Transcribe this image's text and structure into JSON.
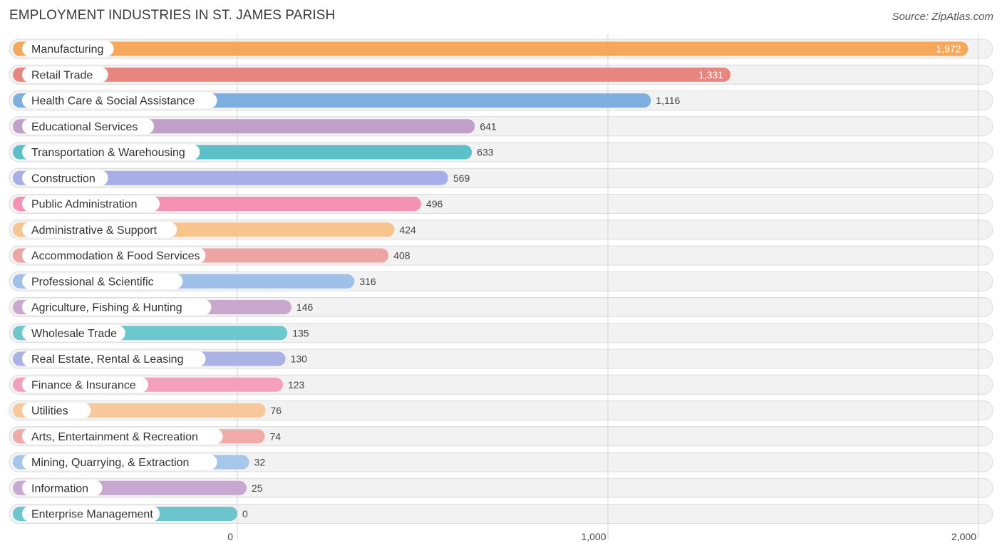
{
  "header": {
    "title": "EMPLOYMENT INDUSTRIES IN ST. JAMES PARISH",
    "source": "Source: ZipAtlas.com"
  },
  "chart_data": {
    "type": "bar",
    "orientation": "horizontal",
    "title": "EMPLOYMENT INDUSTRIES IN ST. JAMES PARISH",
    "xlabel": "",
    "ylabel": "",
    "xlim": [
      0,
      2000
    ],
    "ticks": [
      0,
      1000,
      2000
    ],
    "tick_labels": [
      "0",
      "1,000",
      "2,000"
    ],
    "grid": true,
    "categories": [
      "Manufacturing",
      "Retail Trade",
      "Health Care & Social Assistance",
      "Educational Services",
      "Transportation & Warehousing",
      "Construction",
      "Public Administration",
      "Administrative & Support",
      "Accommodation & Food Services",
      "Professional & Scientific",
      "Agriculture, Fishing & Hunting",
      "Wholesale Trade",
      "Real Estate, Rental & Leasing",
      "Finance & Insurance",
      "Utilities",
      "Arts, Entertainment & Recreation",
      "Mining, Quarrying, & Extraction",
      "Information",
      "Enterprise Management"
    ],
    "values": [
      1972,
      1331,
      1116,
      641,
      633,
      569,
      496,
      424,
      408,
      316,
      146,
      135,
      130,
      123,
      76,
      74,
      32,
      25,
      0
    ],
    "value_labels": [
      "1,972",
      "1,331",
      "1,116",
      "641",
      "633",
      "569",
      "496",
      "424",
      "408",
      "316",
      "146",
      "135",
      "130",
      "123",
      "76",
      "74",
      "32",
      "25",
      "0"
    ],
    "colors": [
      "#f5a85c",
      "#e8857f",
      "#7eaee0",
      "#c0a0c8",
      "#5cc0c8",
      "#a8aee8",
      "#f592b4",
      "#f8c48e",
      "#eea4a2",
      "#9fc0e8",
      "#c8a8cc",
      "#6cc8cc",
      "#aab2e6",
      "#f4a0bc",
      "#f8c89a",
      "#f0aaa8",
      "#a6c6ec",
      "#c6a8d0",
      "#6cc4cc"
    ]
  }
}
